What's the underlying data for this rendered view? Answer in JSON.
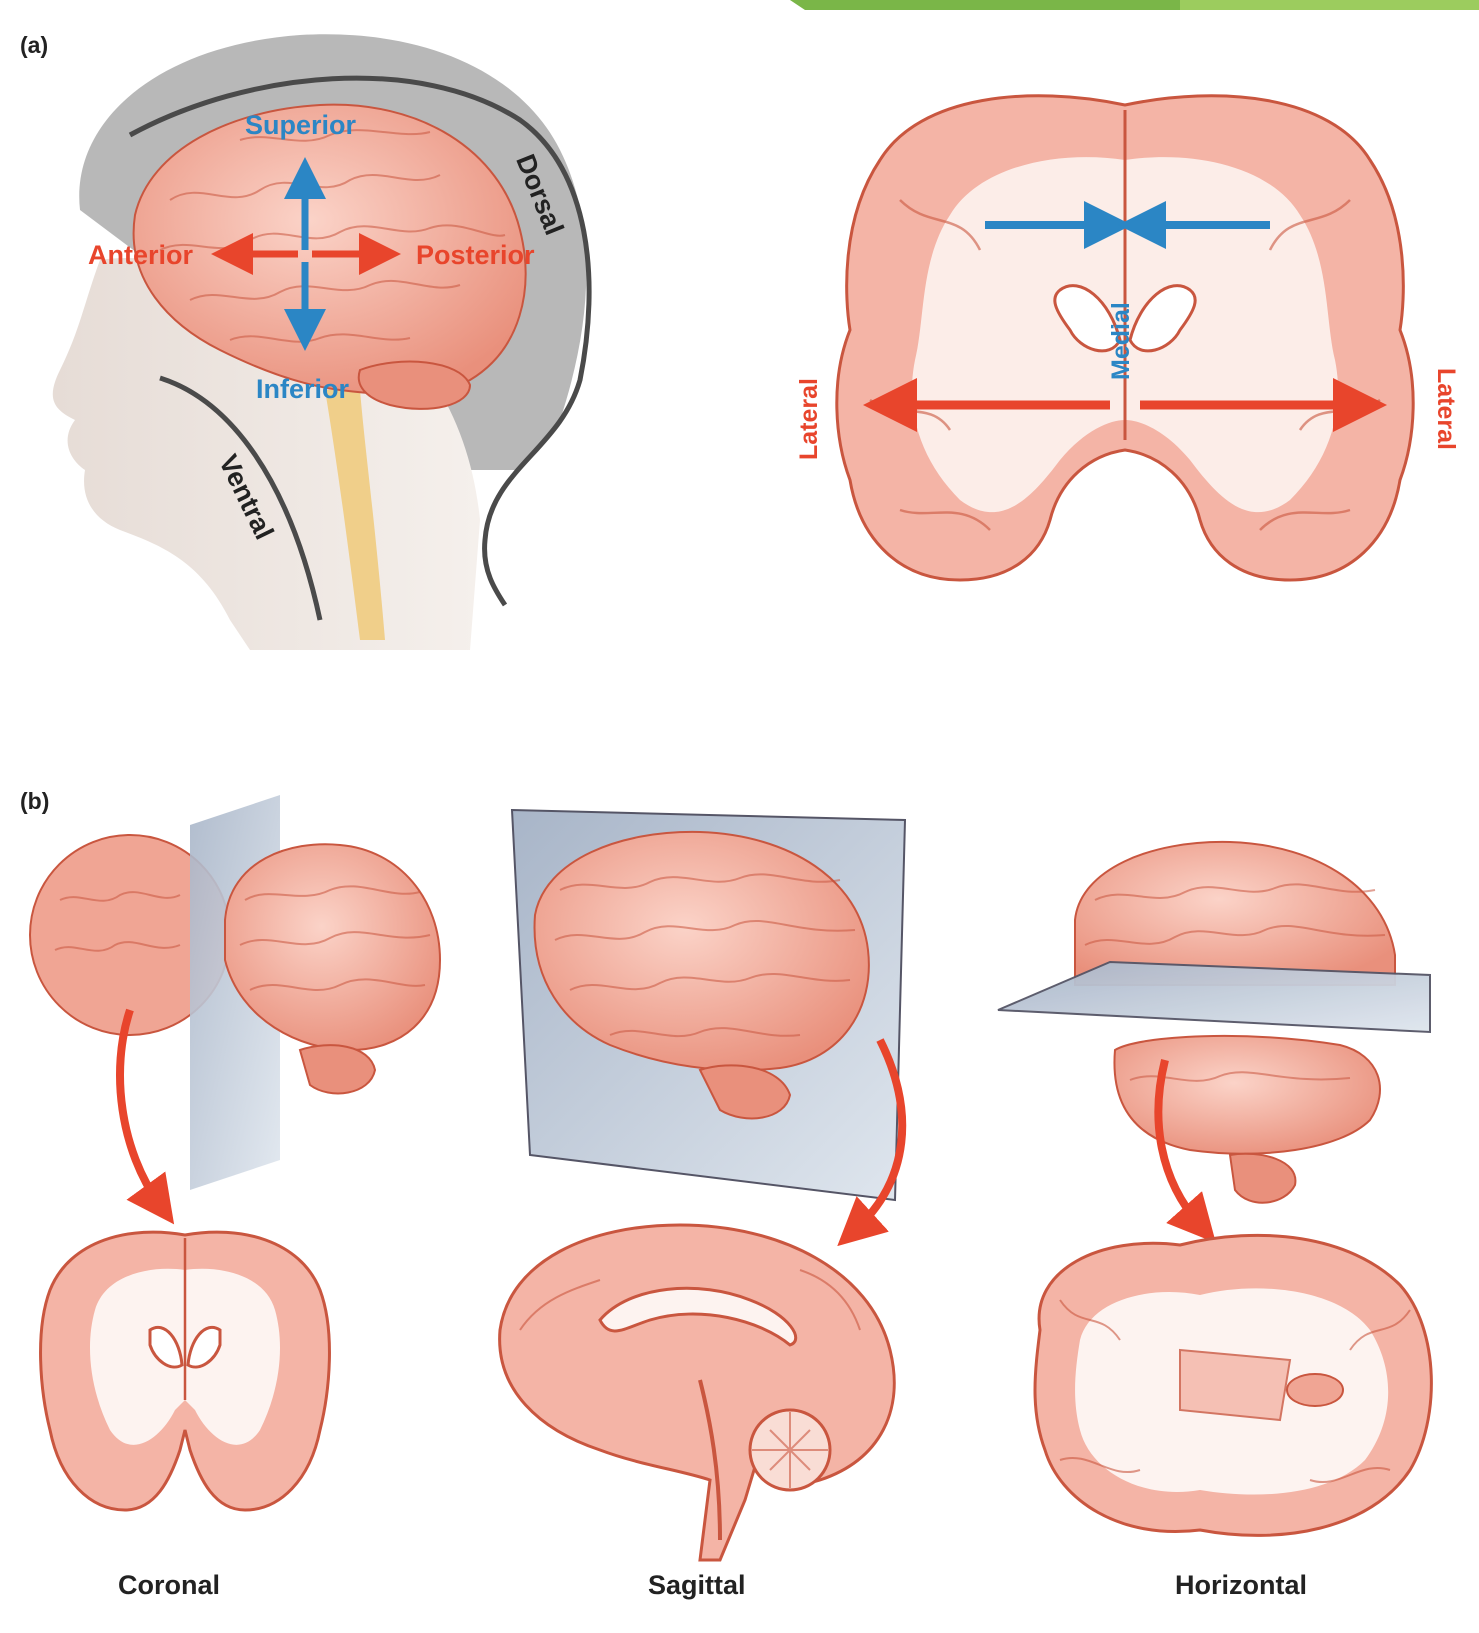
{
  "panel_a": {
    "label": "(a)",
    "head": {
      "superior": "Superior",
      "inferior": "Inferior",
      "anterior": "Anterior",
      "posterior": "Posterior",
      "dorsal": "Dorsal",
      "ventral": "Ventral"
    },
    "coronal_section": {
      "medial": "Medial",
      "lateral_left": "Lateral",
      "lateral_right": "Lateral"
    }
  },
  "panel_b": {
    "label": "(b)",
    "captions": {
      "coronal": "Coronal",
      "sagittal": "Sagittal",
      "horizontal": "Horizontal"
    }
  },
  "colors": {
    "arrow_blue": "#2b86c5",
    "arrow_red": "#e8452c",
    "brain_fill": "#f4b4a6",
    "brain_outline": "#c9563f",
    "white_matter": "#fdf3f0",
    "plane": "#b9c6d6",
    "guide_line": "#4a4a4a",
    "accent_bar": "#7ab648"
  }
}
